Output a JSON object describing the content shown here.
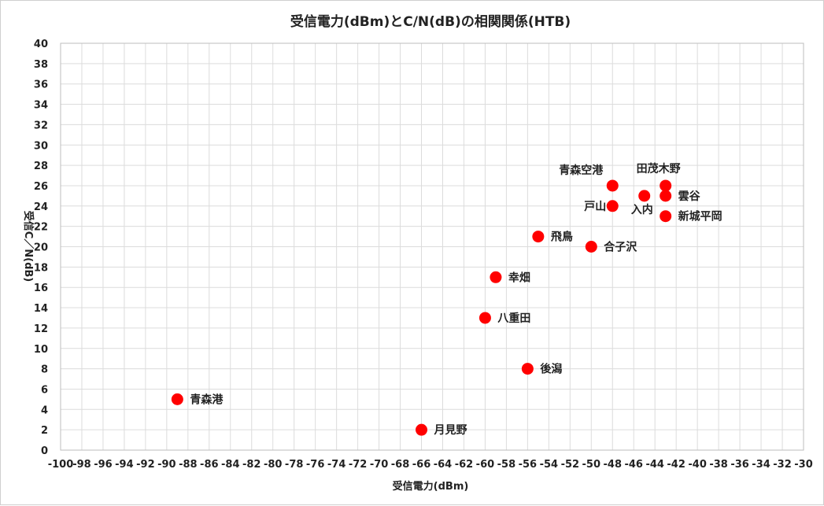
{
  "chart_data": {
    "type": "scatter",
    "title": "受信電力(dBm)とC/N(dB)の相関関係(HTB)",
    "xlabel": "受信電力(dBm)",
    "ylabel": "受信C／N(dB)",
    "xlim": [
      -100,
      -30
    ],
    "ylim": [
      0,
      40
    ],
    "x_step": 2,
    "y_step": 2,
    "grid": true,
    "legend": "none",
    "marker_color": "#ff0000",
    "points": [
      {
        "label": "青森港",
        "x": -89,
        "y": 5,
        "label_side": "right"
      },
      {
        "label": "月見野",
        "x": -66,
        "y": 2,
        "label_side": "right"
      },
      {
        "label": "八重田",
        "x": -60,
        "y": 13,
        "label_side": "right"
      },
      {
        "label": "幸畑",
        "x": -59,
        "y": 17,
        "label_side": "right"
      },
      {
        "label": "後潟",
        "x": -56,
        "y": 8,
        "label_side": "right"
      },
      {
        "label": "飛鳥",
        "x": -55,
        "y": 21,
        "label_side": "right"
      },
      {
        "label": "合子沢",
        "x": -50,
        "y": 20,
        "label_side": "right"
      },
      {
        "label": "青森空港",
        "x": -48,
        "y": 26,
        "label_side": "above-left"
      },
      {
        "label": "戸山",
        "x": -48,
        "y": 24,
        "label_side": "left"
      },
      {
        "label": "入内",
        "x": -45,
        "y": 25,
        "label_side": "below"
      },
      {
        "label": "田茂木野",
        "x": -43,
        "y": 26,
        "label_side": "above"
      },
      {
        "label": "雲谷",
        "x": -43,
        "y": 25,
        "label_side": "right"
      },
      {
        "label": "新城平岡",
        "x": -43,
        "y": 23,
        "label_side": "right"
      }
    ]
  }
}
